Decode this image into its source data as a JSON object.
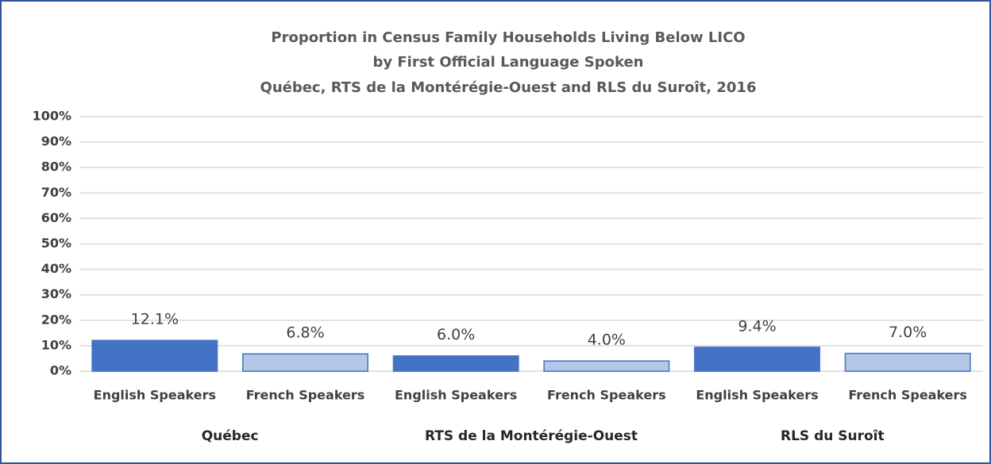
{
  "chart_data": {
    "type": "bar",
    "title": [
      "Proportion in Census Family Households Living Below LICO",
      "by First Official Language Spoken",
      "Québec, RTS de la Montérégie-Ouest and RLS du Suroît, 2016"
    ],
    "categories": [
      "English Speakers",
      "French Speakers",
      "English Speakers",
      "French Speakers",
      "English Speakers",
      "French Speakers"
    ],
    "groups": [
      "Québec",
      "RTS de la Montérégie-Ouest",
      "RLS du Suroît"
    ],
    "values": [
      12.1,
      6.8,
      6.0,
      4.0,
      9.4,
      7.0
    ],
    "value_labels": [
      "12.1%",
      "6.8%",
      "6.0%",
      "4.0%",
      "9.4%",
      "7.0%"
    ],
    "colors": [
      "#4472c4",
      "#b4c7e7",
      "#4472c4",
      "#b4c7e7",
      "#4472c4",
      "#b4c7e7"
    ],
    "ylim": [
      0,
      100
    ],
    "yticks": [
      {
        "value": 0,
        "label": "0%"
      },
      {
        "value": 10,
        "label": "10%"
      },
      {
        "value": 20,
        "label": "20%"
      },
      {
        "value": 30,
        "label": "30%"
      },
      {
        "value": 40,
        "label": "40%"
      },
      {
        "value": 50,
        "label": "50%"
      },
      {
        "value": 60,
        "label": "60%"
      },
      {
        "value": 70,
        "label": "70%"
      },
      {
        "value": 80,
        "label": "80%"
      },
      {
        "value": 90,
        "label": "90%"
      },
      {
        "value": 100,
        "label": "100%"
      }
    ],
    "grid": true
  }
}
